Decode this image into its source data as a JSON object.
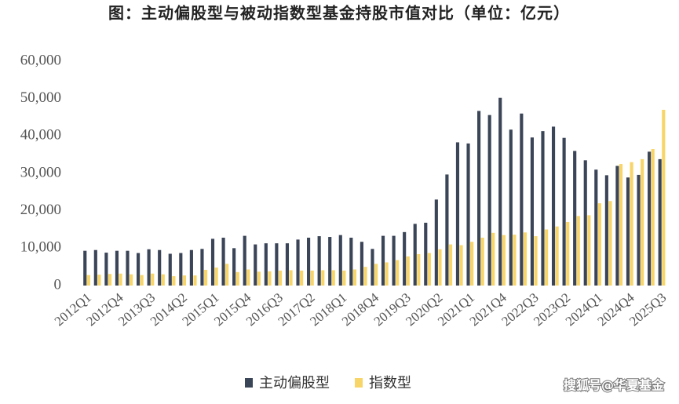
{
  "chart_data": {
    "type": "bar",
    "title": "图：主动偏股型与被动指数型基金持股市值对比（单位：亿元）",
    "watermark": "搜狐号@华夏基金",
    "categories": [
      "2012Q1",
      null,
      null,
      "2012Q4",
      null,
      null,
      "2013Q3",
      null,
      null,
      "2014Q2",
      null,
      null,
      "2015Q1",
      null,
      null,
      "2015Q4",
      null,
      null,
      "2016Q3",
      null,
      null,
      "2017Q2",
      null,
      null,
      "2018Q1",
      null,
      null,
      "2018Q4",
      null,
      null,
      "2019Q3",
      null,
      null,
      "2020Q2",
      null,
      null,
      "2021Q1",
      null,
      null,
      "2021Q4",
      null,
      null,
      "2022Q3",
      null,
      null,
      "2023Q2",
      null,
      null,
      "2024Q1",
      null,
      null,
      "2024Q4",
      null,
      null,
      "2025Q3"
    ],
    "series": [
      {
        "name": "主动偏股型",
        "color": "#3b4558",
        "values": [
          9300,
          9500,
          8800,
          9300,
          9300,
          8700,
          9700,
          9500,
          8500,
          8700,
          9500,
          9800,
          12500,
          12800,
          10000,
          13300,
          11000,
          11300,
          11300,
          11300,
          12300,
          12800,
          13200,
          13000,
          13500,
          12800,
          11700,
          9800,
          13300,
          13300,
          14300,
          16500,
          16800,
          23000,
          29700,
          38300,
          38000,
          46700,
          45600,
          50200,
          41700,
          46000,
          39600,
          41300,
          42500,
          39500,
          36000,
          33500,
          31000,
          29500,
          32000,
          28900,
          29600,
          35800,
          33800
        ]
      },
      {
        "name": "指数型",
        "color": "#f8d568",
        "values": [
          2800,
          2900,
          3100,
          3200,
          3000,
          2800,
          3200,
          3000,
          2500,
          2700,
          2700,
          4200,
          4800,
          5800,
          3600,
          4300,
          3700,
          3800,
          4000,
          4100,
          4000,
          4000,
          4100,
          4100,
          4000,
          4300,
          5000,
          5800,
          6200,
          6800,
          7800,
          8400,
          8700,
          9700,
          11000,
          10800,
          11700,
          12800,
          14100,
          13500,
          13600,
          14200,
          13200,
          15000,
          15800,
          17000,
          18600,
          18800,
          22000,
          22600,
          32500,
          33000,
          33800,
          36500,
          47000
        ]
      }
    ],
    "ylim": [
      0,
      60000
    ],
    "yticks": [
      0,
      {
        "value": 10000,
        "label": "10,000"
      },
      {
        "value": 20000,
        "label": "20,000"
      },
      {
        "value": 30000,
        "label": "30,000"
      },
      {
        "value": 40000,
        "label": "40,000"
      },
      {
        "value": 50000,
        "label": "50,000"
      },
      {
        "value": 60000,
        "label": "60,000"
      }
    ],
    "grid": false
  }
}
